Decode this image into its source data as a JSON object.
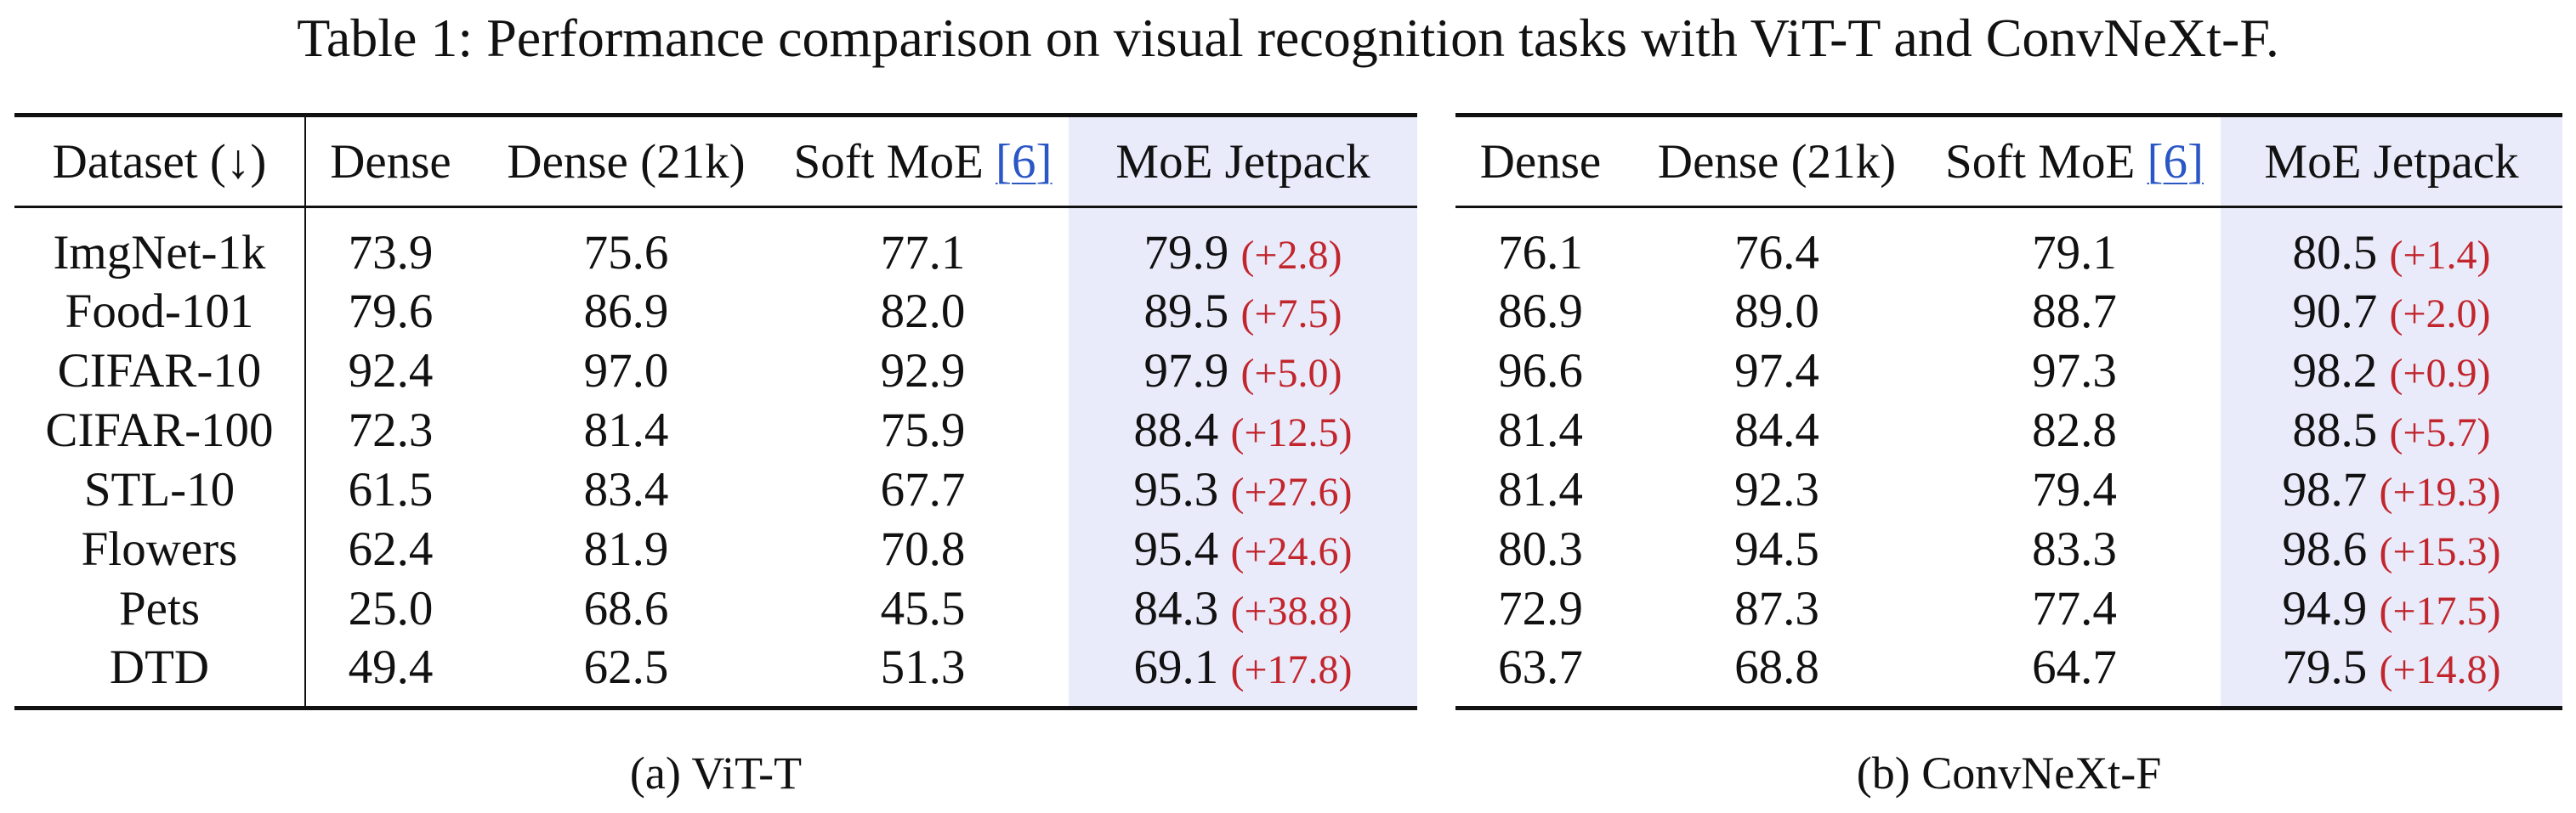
{
  "caption": "Table 1: Performance comparison on visual recognition tasks with ViT-T and ConvNeXt-F.",
  "datasets_header": "Dataset (↓)",
  "columns": {
    "dense": "Dense",
    "dense21k": "Dense (21k)",
    "softmoe": "Soft MoE",
    "softmoe_cite": "[6]",
    "jetpack": "MoE Jetpack"
  },
  "rows": [
    {
      "dataset": "ImgNet-1k",
      "vit": {
        "dense": "73.9",
        "dense21k": "75.6",
        "softmoe": "77.1",
        "jetpack": "79.9",
        "gain": "(+2.8)"
      },
      "convnext": {
        "dense": "76.1",
        "dense21k": "76.4",
        "softmoe": "79.1",
        "jetpack": "80.5",
        "gain": "(+1.4)"
      }
    },
    {
      "dataset": "Food-101",
      "vit": {
        "dense": "79.6",
        "dense21k": "86.9",
        "softmoe": "82.0",
        "jetpack": "89.5",
        "gain": "(+7.5)"
      },
      "convnext": {
        "dense": "86.9",
        "dense21k": "89.0",
        "softmoe": "88.7",
        "jetpack": "90.7",
        "gain": "(+2.0)"
      }
    },
    {
      "dataset": "CIFAR-10",
      "vit": {
        "dense": "92.4",
        "dense21k": "97.0",
        "softmoe": "92.9",
        "jetpack": "97.9",
        "gain": "(+5.0)"
      },
      "convnext": {
        "dense": "96.6",
        "dense21k": "97.4",
        "softmoe": "97.3",
        "jetpack": "98.2",
        "gain": "(+0.9)"
      }
    },
    {
      "dataset": "CIFAR-100",
      "vit": {
        "dense": "72.3",
        "dense21k": "81.4",
        "softmoe": "75.9",
        "jetpack": "88.4",
        "gain": "(+12.5)"
      },
      "convnext": {
        "dense": "81.4",
        "dense21k": "84.4",
        "softmoe": "82.8",
        "jetpack": "88.5",
        "gain": "(+5.7)"
      }
    },
    {
      "dataset": "STL-10",
      "vit": {
        "dense": "61.5",
        "dense21k": "83.4",
        "softmoe": "67.7",
        "jetpack": "95.3",
        "gain": "(+27.6)"
      },
      "convnext": {
        "dense": "81.4",
        "dense21k": "92.3",
        "softmoe": "79.4",
        "jetpack": "98.7",
        "gain": "(+19.3)"
      }
    },
    {
      "dataset": "Flowers",
      "vit": {
        "dense": "62.4",
        "dense21k": "81.9",
        "softmoe": "70.8",
        "jetpack": "95.4",
        "gain": "(+24.6)"
      },
      "convnext": {
        "dense": "80.3",
        "dense21k": "94.5",
        "softmoe": "83.3",
        "jetpack": "98.6",
        "gain": "(+15.3)"
      }
    },
    {
      "dataset": "Pets",
      "vit": {
        "dense": "25.0",
        "dense21k": "68.6",
        "softmoe": "45.5",
        "jetpack": "84.3",
        "gain": "(+38.8)"
      },
      "convnext": {
        "dense": "72.9",
        "dense21k": "87.3",
        "softmoe": "77.4",
        "jetpack": "94.9",
        "gain": "(+17.5)"
      }
    },
    {
      "dataset": "DTD",
      "vit": {
        "dense": "49.4",
        "dense21k": "62.5",
        "softmoe": "51.3",
        "jetpack": "69.1",
        "gain": "(+17.8)"
      },
      "convnext": {
        "dense": "63.7",
        "dense21k": "68.8",
        "softmoe": "64.7",
        "jetpack": "79.5",
        "gain": "(+14.8)"
      }
    }
  ],
  "subcaptions": {
    "a": "(a) ViT-T",
    "b": "(b) ConvNeXt-F"
  },
  "colors": {
    "highlight_bg": "#e9ebfb",
    "gain": "#c2262d",
    "citation": "#2a56c6"
  }
}
